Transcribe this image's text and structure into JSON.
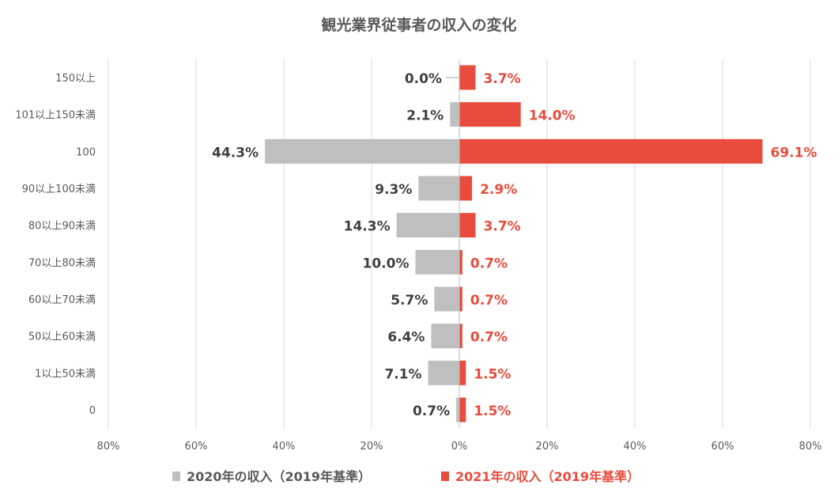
{
  "chart_data": {
    "type": "bar",
    "orientation": "horizontal-diverging",
    "title": "観光業界従事者の収入の変化",
    "categories": [
      "150以上",
      "101以上150未満",
      "100",
      "90以上100未満",
      "80以上90未満",
      "70以上80未満",
      "60以上70未満",
      "50以上60未満",
      "1以上50未満",
      "0"
    ],
    "series": [
      {
        "name": "2020年の収入（2019年基準）",
        "direction": "left",
        "color": "#bfbfbf",
        "label_color": "#404040",
        "values": [
          0.0,
          2.1,
          44.3,
          9.3,
          14.3,
          10.0,
          5.7,
          6.4,
          7.1,
          0.7
        ],
        "labels": [
          "0.0%",
          "2.1%",
          "44.3%",
          "9.3%",
          "14.3%",
          "10.0%",
          "5.7%",
          "6.4%",
          "7.1%",
          "0.7%"
        ]
      },
      {
        "name": "2021年の収入（2019年基準）",
        "direction": "right",
        "color": "#e84c3d",
        "label_color": "#e84c3d",
        "values": [
          3.7,
          14.0,
          69.1,
          2.9,
          3.7,
          0.7,
          0.7,
          0.7,
          1.5,
          1.5
        ],
        "labels": [
          "3.7%",
          "14.0%",
          "69.1%",
          "2.9%",
          "3.7%",
          "0.7%",
          "0.7%",
          "0.7%",
          "1.5%",
          "1.5%"
        ]
      }
    ],
    "xlim": [
      -80,
      80
    ],
    "xticks": [
      -80,
      -60,
      -40,
      -20,
      0,
      20,
      40,
      60,
      80
    ],
    "xtick_labels": [
      "80%",
      "60%",
      "40%",
      "20%",
      "0%",
      "20%",
      "40%",
      "60%",
      "80%"
    ],
    "grid": "vertical",
    "legend_position": "bottom"
  }
}
